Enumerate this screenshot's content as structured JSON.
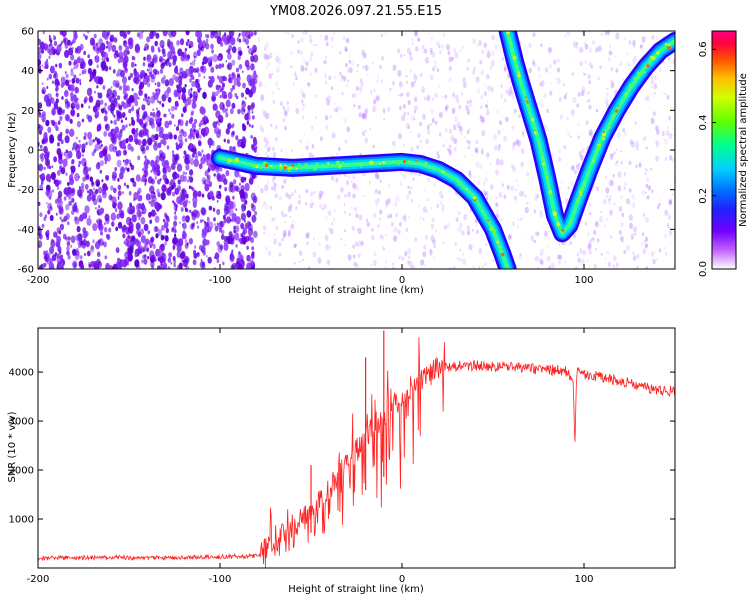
{
  "title": "YM08.2026.097.21.55.E15",
  "colors": {
    "spectrum_scale": [
      "#ffffff",
      "#8a00ff",
      "#2a00ff",
      "#0050ff",
      "#00c8ff",
      "#00ff90",
      "#90ff00",
      "#ffd000",
      "#ff5000",
      "#ff0050"
    ],
    "snr_line": "#ff2020"
  },
  "chart_data": [
    {
      "type": "heatmap",
      "xlabel": "Height of straight line (km)",
      "ylabel": "Frequency (Hz)",
      "xlim": [
        -200,
        150
      ],
      "ylim": [
        -60,
        60
      ],
      "xticks": [
        "-200",
        "-100",
        "0",
        "100"
      ],
      "yticks": [
        "60",
        "40",
        "20",
        "0",
        "-20",
        "-40",
        "-60"
      ],
      "colorbar": {
        "label": "Normalized spectral amplitude",
        "range": [
          0,
          0.65
        ],
        "ticks": [
          "0.0",
          "0.2",
          "0.4",
          "0.6"
        ]
      },
      "features": {
        "noise_region_x": [
          -200,
          -80
        ],
        "main_trace": {
          "x": [
            -100,
            -90,
            -80,
            -60,
            -40,
            -20,
            0,
            10,
            20,
            30,
            40,
            50,
            55,
            58
          ],
          "y": [
            -4,
            -6,
            -8,
            -9,
            -8,
            -7,
            -6,
            -7,
            -10,
            -15,
            -24,
            -40,
            -52,
            -60
          ]
        },
        "v_trace": {
          "x": [
            58,
            62,
            66,
            70,
            75,
            80,
            84,
            88,
            92,
            97,
            103,
            110,
            118,
            126,
            134,
            142,
            150
          ],
          "y": [
            60,
            45,
            32,
            20,
            5,
            -15,
            -33,
            -42,
            -38,
            -25,
            -10,
            6,
            20,
            32,
            42,
            50,
            55
          ]
        }
      }
    },
    {
      "type": "line",
      "xlabel": "Height of straight line (km)",
      "ylabel": "SNR (10 * v/v)",
      "xlim": [
        -200,
        150
      ],
      "ylim": [
        0,
        4900
      ],
      "xticks": [
        "-200",
        "-100",
        "0",
        "100"
      ],
      "yticks": [
        "1000",
        "2000",
        "3000",
        "4000"
      ],
      "series": [
        {
          "x": [
            -200,
            -180,
            -160,
            -140,
            -120,
            -100,
            -90,
            -80,
            -75,
            -70,
            -65,
            -60,
            -55,
            -50,
            -45,
            -40,
            -35,
            -30,
            -25,
            -20,
            -15,
            -10,
            -5,
            0,
            5,
            10,
            15,
            20,
            25,
            30,
            40,
            50,
            60,
            70,
            80,
            90,
            94,
            95,
            96,
            100,
            110,
            120,
            130,
            140,
            150
          ],
          "values": [
            200,
            210,
            220,
            200,
            215,
            230,
            240,
            250,
            350,
            500,
            700,
            850,
            950,
            1200,
            1400,
            1600,
            1900,
            2150,
            2400,
            2650,
            2900,
            3100,
            3300,
            3500,
            3700,
            3850,
            3950,
            4050,
            4100,
            4120,
            4130,
            4120,
            4100,
            4080,
            4050,
            4020,
            3800,
            2550,
            4000,
            3950,
            3900,
            3820,
            3720,
            3650,
            3600
          ]
        }
      ],
      "spikes": {
        "x": [
          -10,
          -20,
          -50
        ],
        "values": [
          4850,
          4300,
          2100
        ]
      }
    }
  ]
}
